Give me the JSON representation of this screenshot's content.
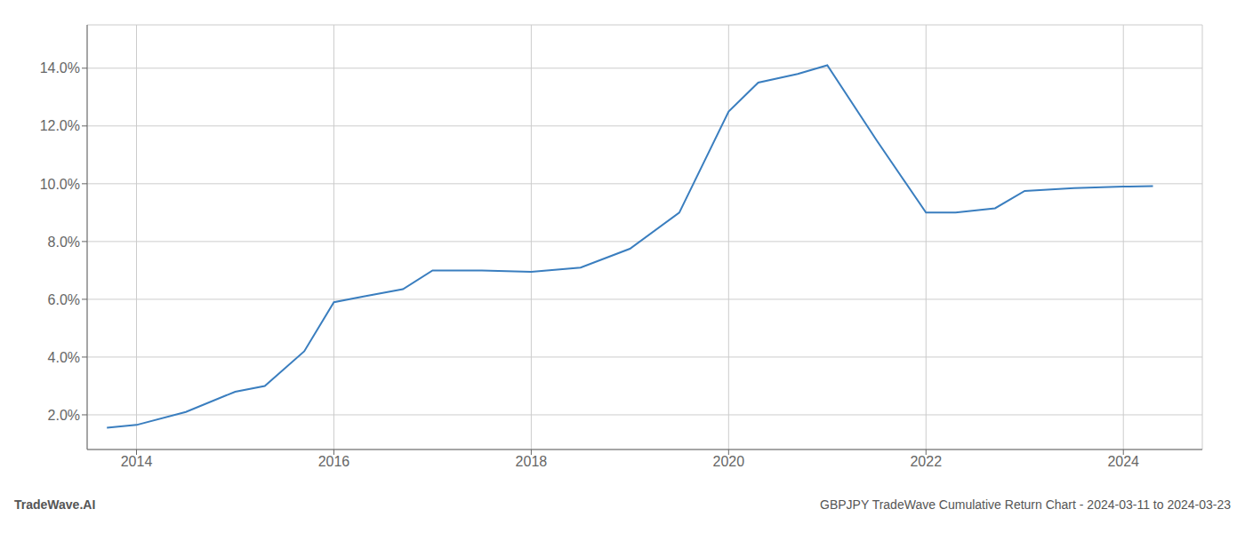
{
  "chart_data": {
    "type": "line",
    "x": [
      2013.7,
      2014.0,
      2014.5,
      2015.0,
      2015.3,
      2015.7,
      2016.0,
      2016.3,
      2016.7,
      2017.0,
      2017.5,
      2018.0,
      2018.5,
      2019.0,
      2019.5,
      2020.0,
      2020.3,
      2020.7,
      2021.0,
      2021.5,
      2022.0,
      2022.3,
      2022.7,
      2023.0,
      2023.5,
      2024.0,
      2024.3
    ],
    "values": [
      1.55,
      1.65,
      2.1,
      2.8,
      3.0,
      4.2,
      5.9,
      6.1,
      6.35,
      7.0,
      7.0,
      6.95,
      7.1,
      7.75,
      9.0,
      12.5,
      13.5,
      13.8,
      14.1,
      11.5,
      9.0,
      9.0,
      9.15,
      9.75,
      9.85,
      9.9,
      9.92
    ],
    "color": "#3a7ebf",
    "xlim": [
      2013.5,
      2024.8
    ],
    "ylim": [
      0.8,
      15.5
    ],
    "xticks": [
      2014,
      2016,
      2018,
      2020,
      2022,
      2024
    ],
    "yticks": [
      {
        "value": 2.0,
        "label": "2.0%"
      },
      {
        "value": 4.0,
        "label": "4.0%"
      },
      {
        "value": 6.0,
        "label": "6.0%"
      },
      {
        "value": 8.0,
        "label": "8.0%"
      },
      {
        "value": 10.0,
        "label": "10.0%"
      },
      {
        "value": 12.0,
        "label": "12.0%"
      },
      {
        "value": 14.0,
        "label": "14.0%"
      }
    ],
    "grid": true,
    "annotations": [
      "TradeWave.AI",
      "GBPJPY TradeWave Cumulative Return Chart - 2024-03-11 to 2024-03-23"
    ]
  }
}
